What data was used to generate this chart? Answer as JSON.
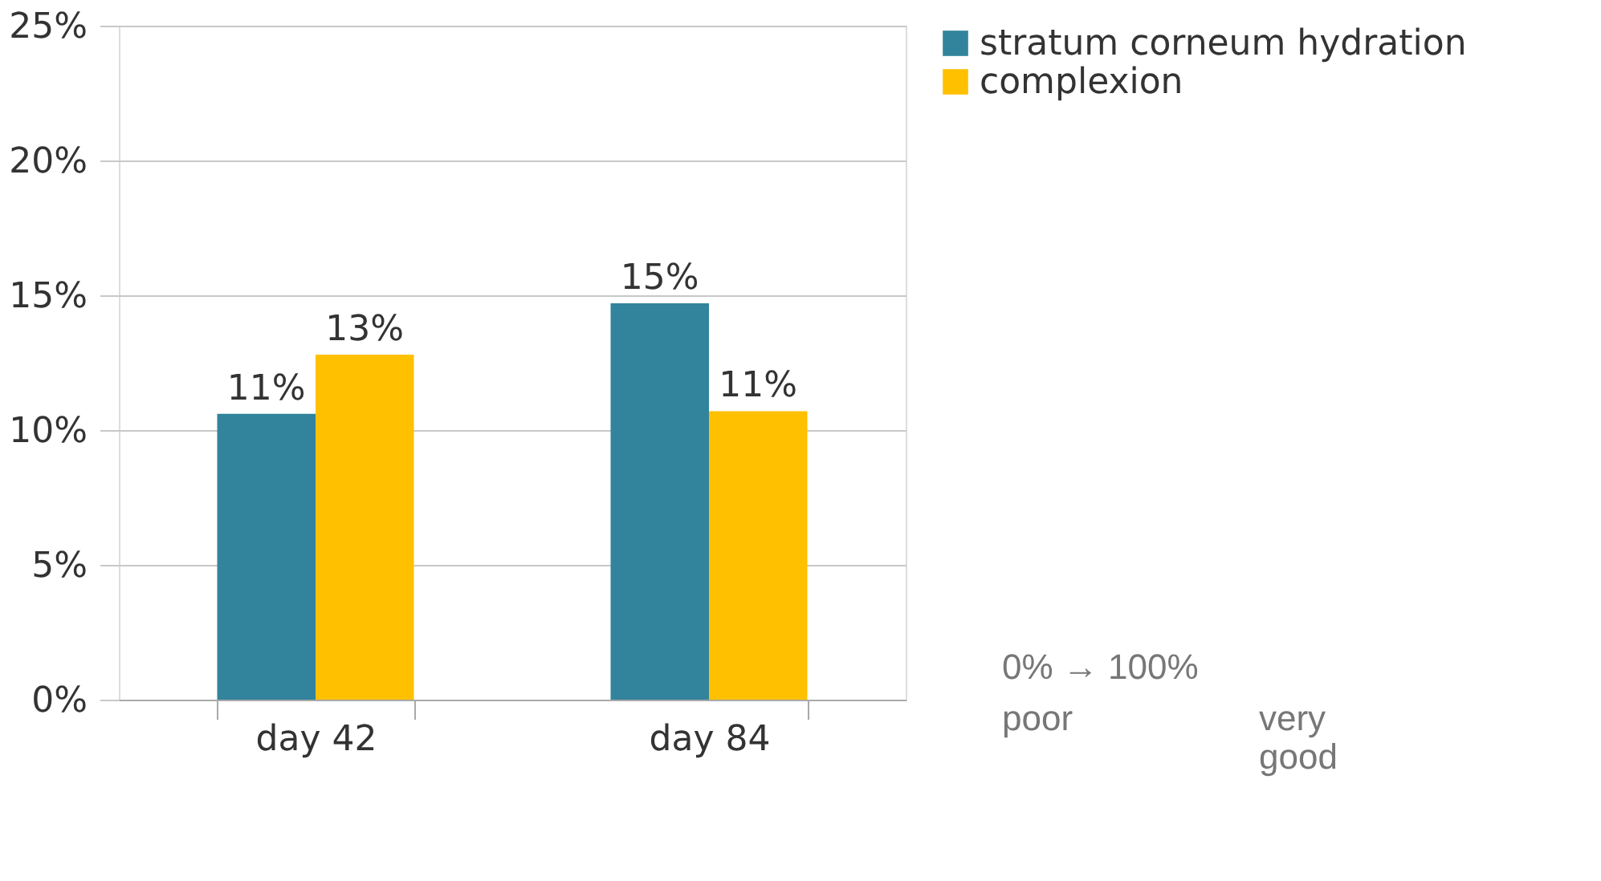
{
  "chart_data": {
    "type": "bar",
    "categories": [
      "day 42",
      "day 84"
    ],
    "series": [
      {
        "name": "stratum corneum hydration",
        "color": "#31849b",
        "values": [
          10.6,
          14.7
        ],
        "value_labels": [
          "11%",
          "15%"
        ]
      },
      {
        "name": "complexion",
        "color": "#ffc000",
        "values": [
          12.8,
          10.7
        ],
        "value_labels": [
          "13%",
          "11%"
        ]
      }
    ],
    "ylim": [
      0,
      25
    ],
    "yticks": [
      {
        "value": 0,
        "label": "0%"
      },
      {
        "value": 5,
        "label": "5%"
      },
      {
        "value": 10,
        "label": "10%"
      },
      {
        "value": 15,
        "label": "15%"
      },
      {
        "value": 20,
        "label": "20%"
      },
      {
        "value": 25,
        "label": "25%"
      }
    ],
    "grid": "y",
    "legend": "right",
    "annotations": [
      "0% → 100%",
      "poor",
      "very good"
    ]
  }
}
